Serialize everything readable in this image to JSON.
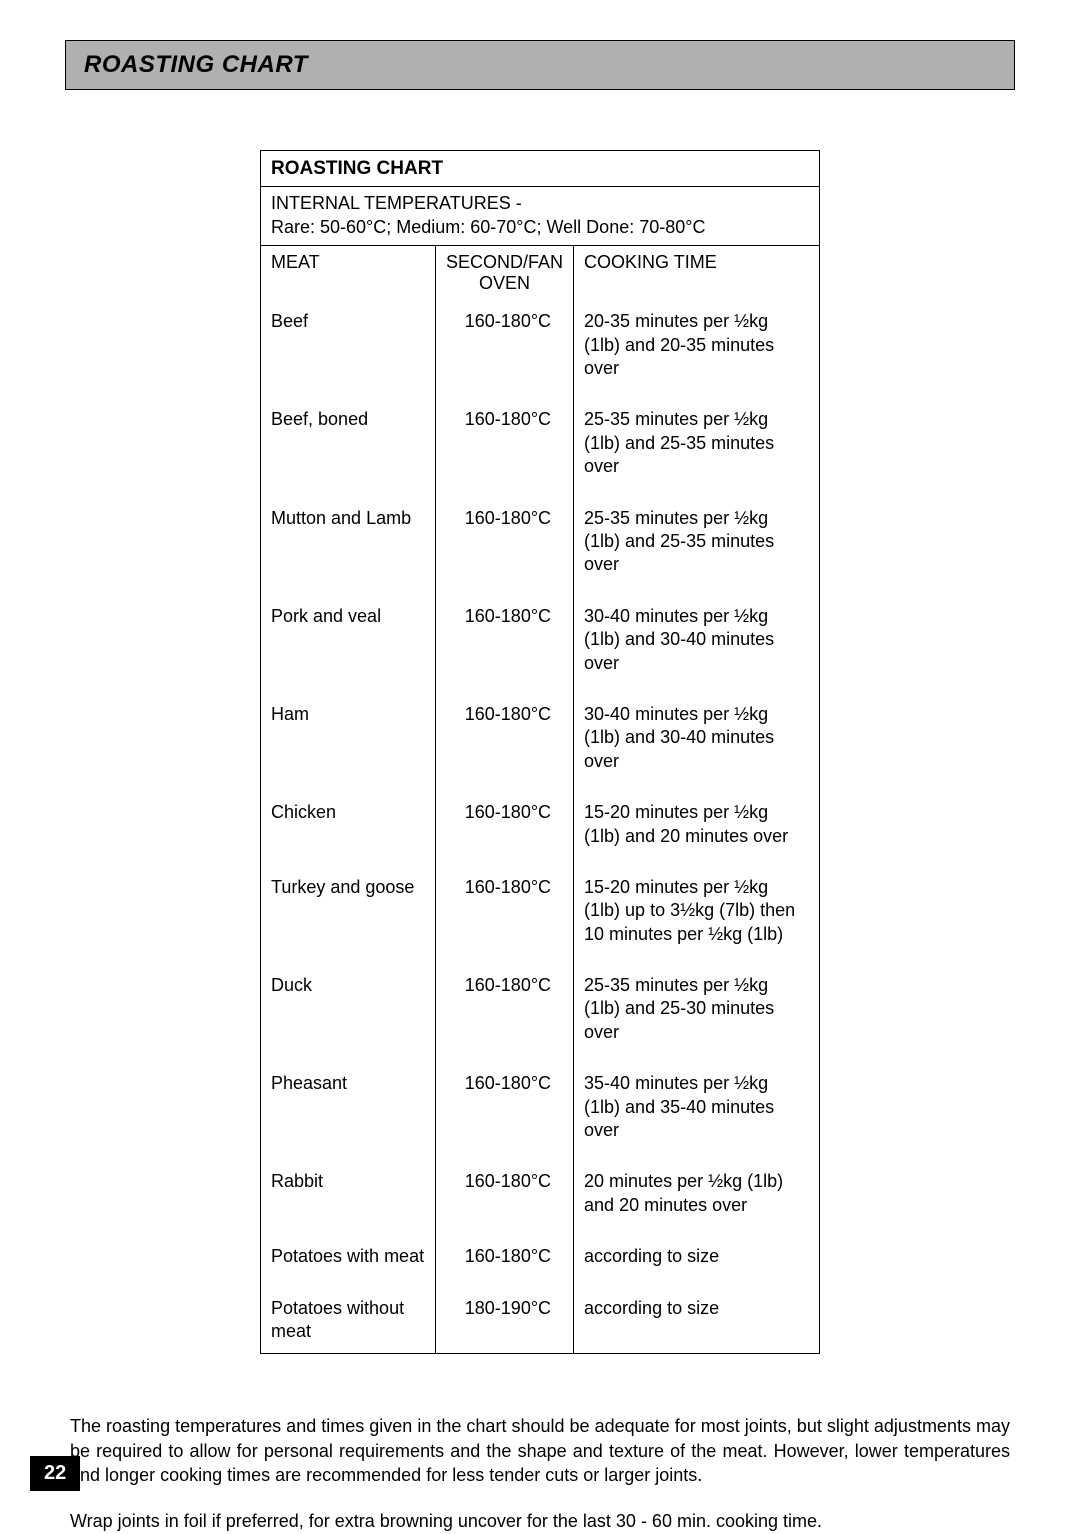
{
  "header": {
    "title": "ROASTING CHART"
  },
  "table": {
    "title": "ROASTING CHART",
    "internal_temps_label": "INTERNAL TEMPERATURES -",
    "internal_temps_values": "Rare: 50-60°C;  Medium: 60-70°C;  Well Done: 70-80°C",
    "columns": {
      "meat": "MEAT",
      "oven": "SECOND/FAN OVEN",
      "time": "COOKING TIME"
    },
    "rows": [
      {
        "meat": "Beef",
        "oven": "160-180°C",
        "time": "20-35 minutes per ½kg (1lb) and 20-35 minutes over"
      },
      {
        "meat": "Beef, boned",
        "oven": "160-180°C",
        "time": "25-35 minutes per ½kg (1lb) and 25-35 minutes over"
      },
      {
        "meat": "Mutton and Lamb",
        "oven": "160-180°C",
        "time": "25-35 minutes per ½kg (1lb) and 25-35 minutes over"
      },
      {
        "meat": "Pork and veal",
        "oven": "160-180°C",
        "time": "30-40 minutes per ½kg (1lb) and 30-40 minutes over"
      },
      {
        "meat": "Ham",
        "oven": "160-180°C",
        "time": "30-40 minutes per ½kg (1lb) and 30-40 minutes over"
      },
      {
        "meat": "Chicken",
        "oven": "160-180°C",
        "time": "15-20 minutes per ½kg (1lb) and 20 minutes over"
      },
      {
        "meat": "Turkey and goose",
        "oven": "160-180°C",
        "time": "15-20 minutes per ½kg (1lb) up to 3½kg (7lb) then 10 minutes per ½kg (1lb)"
      },
      {
        "meat": "Duck",
        "oven": "160-180°C",
        "time": "25-35 minutes per ½kg (1lb) and 25-30 minutes over"
      },
      {
        "meat": "Pheasant",
        "oven": "160-180°C",
        "time": "35-40 minutes per ½kg (1lb) and 35-40 minutes over"
      },
      {
        "meat": "Rabbit",
        "oven": "160-180°C",
        "time": "20 minutes per ½kg (1lb) and 20 minutes over"
      },
      {
        "meat": "Potatoes with meat",
        "oven": "160-180°C",
        "time": "according to size"
      },
      {
        "meat": "Potatoes without meat",
        "oven": "180-190°C",
        "time": "according to size"
      }
    ]
  },
  "footer": {
    "para1": "The roasting temperatures and times given in the chart should be adequate for most joints, but slight adjustments may be required to allow for personal requirements and the shape and texture of the meat. However, lower temperatures and longer cooking times are recommended for less tender cuts or larger joints.",
    "para2": "Wrap joints in foil if preferred, for extra browning uncover for the last 30 - 60 min. cooking time."
  },
  "page_number": "22"
}
